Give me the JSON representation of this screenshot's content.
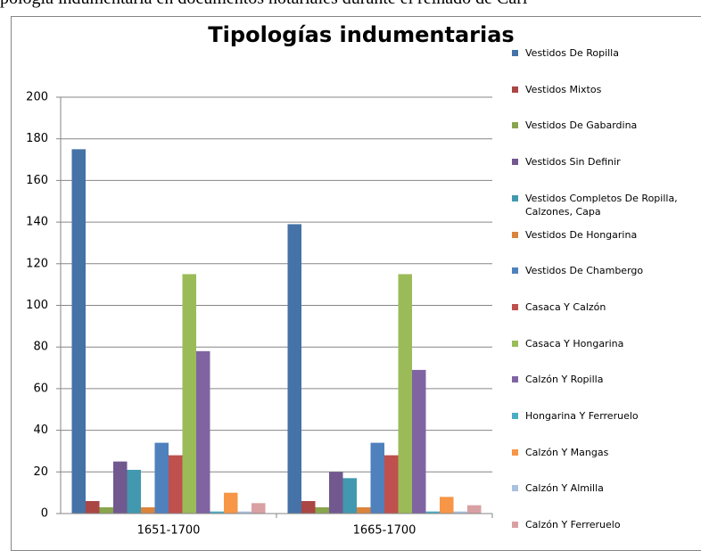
{
  "caption": "pología indumentaria en documentos notariales durante el reinado de Carl",
  "chart_data": {
    "type": "bar",
    "title": "Tipologías indumentarias",
    "categories": [
      "1651-1700",
      "1665-1700"
    ],
    "series": [
      {
        "name": "Vestidos De Ropilla",
        "color": "#4572A7",
        "values": [
          175,
          139
        ]
      },
      {
        "name": "Vestidos Mixtos",
        "color": "#AA4643",
        "values": [
          6,
          6
        ]
      },
      {
        "name": "Vestidos De Gabardina",
        "color": "#89A54E",
        "values": [
          3,
          3
        ]
      },
      {
        "name": "Vestidos Sin Definir",
        "color": "#71588F",
        "values": [
          25,
          20
        ]
      },
      {
        "name": "Vestidos Completos De Ropilla, Calzones, Capa",
        "color": "#4198AF",
        "values": [
          21,
          17
        ]
      },
      {
        "name": "Vestidos De Hongarina",
        "color": "#DB843D",
        "values": [
          3,
          3
        ]
      },
      {
        "name": "Vestidos De Chambergo",
        "color": "#4F81BD",
        "values": [
          34,
          34
        ]
      },
      {
        "name": "Casaca Y Calzón",
        "color": "#C0504D",
        "values": [
          28,
          28
        ]
      },
      {
        "name": "Casaca Y Hongarina",
        "color": "#9BBB59",
        "values": [
          115,
          115
        ]
      },
      {
        "name": "Calzón Y Ropilla",
        "color": "#8064A2",
        "values": [
          78,
          69
        ]
      },
      {
        "name": "Hongarina Y Ferreruelo",
        "color": "#4BACC6",
        "values": [
          1,
          1
        ]
      },
      {
        "name": "Calzón Y Mangas",
        "color": "#F79646",
        "values": [
          10,
          8
        ]
      },
      {
        "name": "Calzón Y Almilla",
        "color": "#A9C1E0",
        "values": [
          1,
          1
        ]
      },
      {
        "name": "Calzón Y Ferreruelo",
        "color": "#D9A0A3",
        "values": [
          5,
          4
        ]
      }
    ],
    "ylim": [
      0,
      200
    ],
    "yticks": [
      0,
      20,
      40,
      60,
      80,
      100,
      120,
      140,
      160,
      180,
      200
    ],
    "grid": true,
    "legend": "right"
  }
}
